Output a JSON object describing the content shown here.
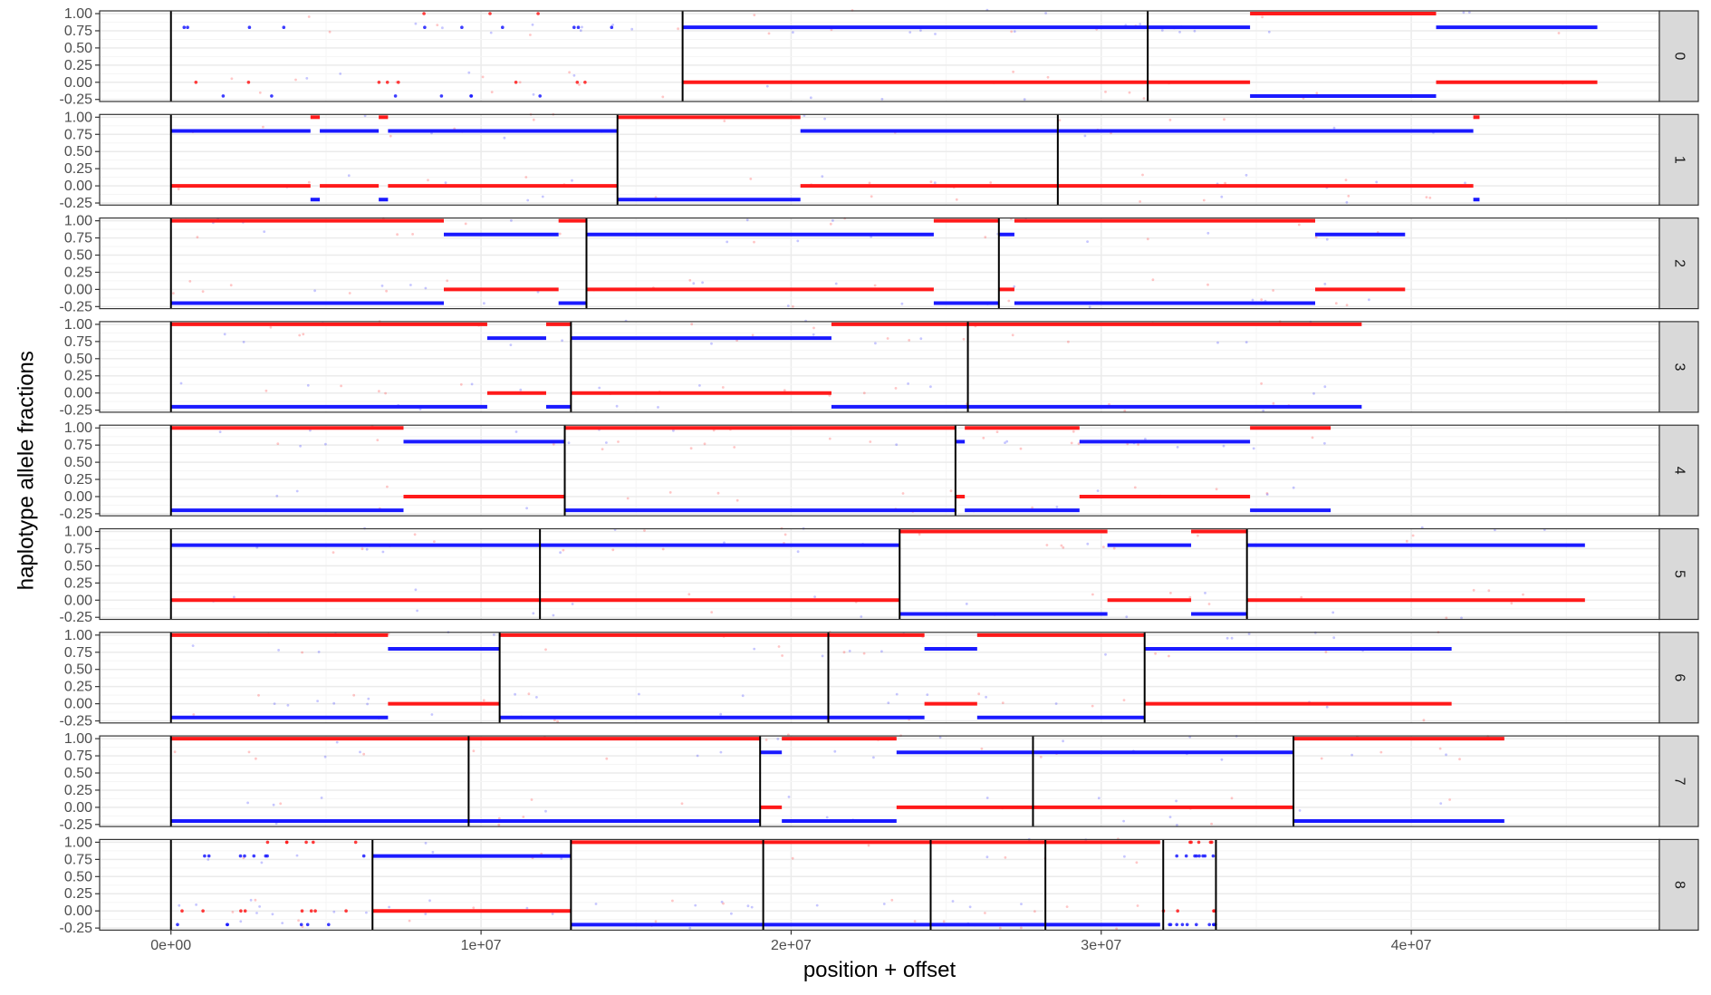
{
  "chart_data": {
    "type": "scatter",
    "xlabel": "position + offset",
    "ylabel": "haplotype allele fractions",
    "xlim": [
      -2300000,
      48000000
    ],
    "ylim": [
      -0.28,
      1.04
    ],
    "x_ticks": [
      0,
      10000000,
      20000000,
      30000000,
      40000000
    ],
    "x_tick_labels": [
      "0e+00",
      "1e+07",
      "2e+07",
      "3e+07",
      "4e+07"
    ],
    "y_ticks": [
      1.0,
      0.75,
      0.5,
      0.25,
      0.0,
      -0.25
    ],
    "y_tick_labels": [
      "1.00",
      "0.75",
      "0.50",
      "0.25",
      "0.00",
      "-0.25"
    ],
    "grid": true,
    "facet_labels": [
      "0",
      "1",
      "2",
      "3",
      "4",
      "5",
      "6",
      "7",
      "8"
    ],
    "colors": {
      "red_series": "#ff1a1a",
      "blue_series": "#1a1aff",
      "strip_background": "#d9d9d9",
      "grid_major": "#ebebeb",
      "grid_minor": "#f5f5f5",
      "panel_border": "#333333",
      "boundary_line": "#000000"
    },
    "panels": [
      {
        "label": "0",
        "boundaries": [
          0,
          16500000,
          31500000
        ],
        "segments": [
          {
            "x0": 16500000,
            "x1": 34800000,
            "red": 0.0,
            "blue": 0.8
          },
          {
            "x0": 34800000,
            "x1": 40800000,
            "red": 1.0,
            "blue": -0.2
          },
          {
            "x0": 40800000,
            "x1": 46000000,
            "red": 0.0,
            "blue": 0.8
          }
        ],
        "sparse": [
          [
            0,
            16500000
          ]
        ]
      },
      {
        "label": "1",
        "boundaries": [
          0,
          14400000,
          28600000
        ],
        "segments": [
          {
            "x0": 0,
            "x1": 4500000,
            "red": 0.0,
            "blue": 0.8
          },
          {
            "x0": 4500000,
            "x1": 4800000,
            "red": 1.0,
            "blue": -0.2
          },
          {
            "x0": 4800000,
            "x1": 6700000,
            "red": 0.0,
            "blue": 0.8
          },
          {
            "x0": 6700000,
            "x1": 7000000,
            "red": 1.0,
            "blue": -0.2
          },
          {
            "x0": 7000000,
            "x1": 14400000,
            "red": 0.0,
            "blue": 0.8
          },
          {
            "x0": 14400000,
            "x1": 20300000,
            "red": 1.0,
            "blue": -0.2
          },
          {
            "x0": 20300000,
            "x1": 42000000,
            "red": 0.0,
            "blue": 0.8
          },
          {
            "x0": 42000000,
            "x1": 42200000,
            "red": 1.0,
            "blue": -0.2
          }
        ],
        "sparse": []
      },
      {
        "label": "2",
        "boundaries": [
          0,
          13400000,
          26700000
        ],
        "segments": [
          {
            "x0": 0,
            "x1": 8800000,
            "red": 1.0,
            "blue": -0.2
          },
          {
            "x0": 8800000,
            "x1": 12500000,
            "red": 0.0,
            "blue": 0.8
          },
          {
            "x0": 12500000,
            "x1": 13400000,
            "red": 1.0,
            "blue": -0.2
          },
          {
            "x0": 13400000,
            "x1": 24600000,
            "red": 0.0,
            "blue": 0.8
          },
          {
            "x0": 24600000,
            "x1": 26700000,
            "red": 1.0,
            "blue": -0.2
          },
          {
            "x0": 26700000,
            "x1": 27200000,
            "red": 0.0,
            "blue": 0.8
          },
          {
            "x0": 27200000,
            "x1": 36900000,
            "red": 1.0,
            "blue": -0.2
          },
          {
            "x0": 36900000,
            "x1": 39800000,
            "red": 0.0,
            "blue": 0.8
          }
        ],
        "sparse": []
      },
      {
        "label": "3",
        "boundaries": [
          0,
          12900000,
          25700000
        ],
        "segments": [
          {
            "x0": 0,
            "x1": 10200000,
            "red": 1.0,
            "blue": -0.2
          },
          {
            "x0": 10200000,
            "x1": 12100000,
            "red": 0.0,
            "blue": 0.8
          },
          {
            "x0": 12100000,
            "x1": 12900000,
            "red": 1.0,
            "blue": -0.2
          },
          {
            "x0": 12900000,
            "x1": 21300000,
            "red": 0.0,
            "blue": 0.8
          },
          {
            "x0": 21300000,
            "x1": 38400000,
            "red": 1.0,
            "blue": -0.2
          }
        ],
        "sparse": []
      },
      {
        "label": "4",
        "boundaries": [
          0,
          12700000,
          25300000
        ],
        "segments": [
          {
            "x0": 0,
            "x1": 7500000,
            "red": 1.0,
            "blue": -0.2
          },
          {
            "x0": 7500000,
            "x1": 12700000,
            "red": 0.0,
            "blue": 0.8
          },
          {
            "x0": 12700000,
            "x1": 25300000,
            "red": 1.0,
            "blue": -0.2
          },
          {
            "x0": 25300000,
            "x1": 25600000,
            "red": 0.0,
            "blue": 0.8
          },
          {
            "x0": 25600000,
            "x1": 29300000,
            "red": 1.0,
            "blue": -0.2
          },
          {
            "x0": 29300000,
            "x1": 34800000,
            "red": 0.0,
            "blue": 0.8
          },
          {
            "x0": 34800000,
            "x1": 37400000,
            "red": 1.0,
            "blue": -0.2
          }
        ],
        "sparse": []
      },
      {
        "label": "5",
        "boundaries": [
          0,
          11900000,
          23500000,
          34700000
        ],
        "segments": [
          {
            "x0": 0,
            "x1": 23500000,
            "red": 0.0,
            "blue": 0.8
          },
          {
            "x0": 23500000,
            "x1": 30200000,
            "red": 1.0,
            "blue": -0.2
          },
          {
            "x0": 30200000,
            "x1": 32900000,
            "red": 0.0,
            "blue": 0.8
          },
          {
            "x0": 32900000,
            "x1": 34700000,
            "red": 1.0,
            "blue": -0.2
          },
          {
            "x0": 34700000,
            "x1": 45600000,
            "red": 0.0,
            "blue": 0.8
          }
        ],
        "sparse": []
      },
      {
        "label": "6",
        "boundaries": [
          0,
          10600000,
          21200000,
          31400000
        ],
        "segments": [
          {
            "x0": 0,
            "x1": 7000000,
            "red": 1.0,
            "blue": -0.2
          },
          {
            "x0": 7000000,
            "x1": 10600000,
            "red": 0.0,
            "blue": 0.8
          },
          {
            "x0": 10600000,
            "x1": 21200000,
            "red": 1.0,
            "blue": -0.2
          },
          {
            "x0": 21200000,
            "x1": 24300000,
            "red": 1.0,
            "blue": -0.2
          },
          {
            "x0": 24300000,
            "x1": 26000000,
            "red": 0.0,
            "blue": 0.8
          },
          {
            "x0": 26000000,
            "x1": 31400000,
            "red": 1.0,
            "blue": -0.2
          },
          {
            "x0": 31400000,
            "x1": 41300000,
            "red": 0.0,
            "blue": 0.8
          }
        ],
        "sparse": []
      },
      {
        "label": "7",
        "boundaries": [
          0,
          9600000,
          19000000,
          27800000,
          36200000
        ],
        "segments": [
          {
            "x0": 0,
            "x1": 19000000,
            "red": 1.0,
            "blue": -0.2
          },
          {
            "x0": 19000000,
            "x1": 19700000,
            "red": 0.0,
            "blue": 0.8
          },
          {
            "x0": 19700000,
            "x1": 23400000,
            "red": 1.0,
            "blue": -0.2
          },
          {
            "x0": 23400000,
            "x1": 36200000,
            "red": 0.0,
            "blue": 0.8
          },
          {
            "x0": 36200000,
            "x1": 43000000,
            "red": 1.0,
            "blue": -0.2
          }
        ],
        "sparse": []
      },
      {
        "label": "8",
        "boundaries": [
          0,
          6500000,
          12900000,
          19100000,
          24500000,
          28200000,
          32000000,
          33700000
        ],
        "segments": [
          {
            "x0": 6500000,
            "x1": 12900000,
            "red": 0.0,
            "blue": 0.8
          },
          {
            "x0": 12900000,
            "x1": 31900000,
            "red": 1.0,
            "blue": -0.2
          }
        ],
        "sparse": [
          [
            0,
            6500000
          ],
          [
            32000000,
            33700000
          ]
        ]
      }
    ]
  }
}
